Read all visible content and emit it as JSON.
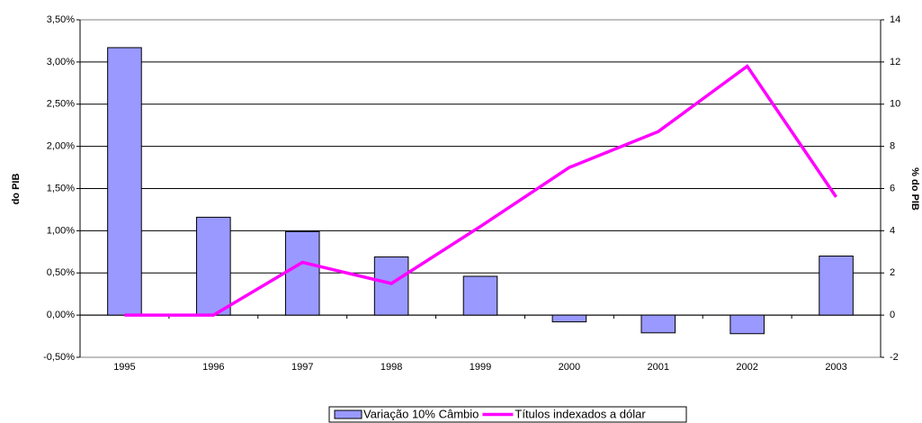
{
  "chart_data": {
    "type": "combo",
    "categories": [
      "1995",
      "1996",
      "1997",
      "1998",
      "1999",
      "2000",
      "2001",
      "2002",
      "2003"
    ],
    "y_label": "do PIB",
    "y2_label": "% do PIB",
    "ylim": [
      -0.5,
      3.5
    ],
    "yticks": [
      {
        "value": -0.5,
        "label": "-0,50%"
      },
      {
        "value": 0,
        "label": "0,00%"
      },
      {
        "value": 0.5,
        "label": "0,50%"
      },
      {
        "value": 1,
        "label": "1,00%"
      },
      {
        "value": 1.5,
        "label": "1,50%"
      },
      {
        "value": 2,
        "label": "2,00%"
      },
      {
        "value": 2.5,
        "label": "2,50%"
      },
      {
        "value": 3,
        "label": "3,00%"
      },
      {
        "value": 3.5,
        "label": "3,50%"
      }
    ],
    "y2lim": [
      -2,
      14
    ],
    "y2ticks": [
      -2,
      0,
      2,
      4,
      6,
      8,
      10,
      12,
      14
    ],
    "grid": true,
    "legend": "bottom",
    "series": [
      {
        "name": "Variação 10% Câmbio",
        "type": "bar",
        "color": "#9999ff",
        "values": [
          3.17,
          1.16,
          0.99,
          0.69,
          0.46,
          -0.08,
          -0.21,
          -0.22,
          0.7
        ]
      },
      {
        "name": "Títulos indexados a dólar",
        "type": "line",
        "axis": "y2",
        "color": "#ff00ff",
        "values": [
          0,
          0,
          2.5,
          1.5,
          4.2,
          7.0,
          8.7,
          11.8,
          5.6
        ]
      }
    ]
  }
}
